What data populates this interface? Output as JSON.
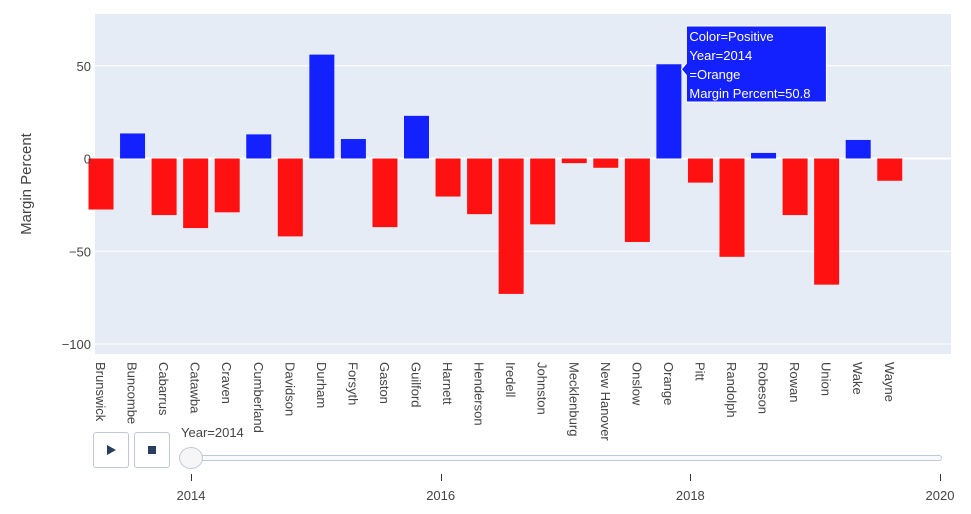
{
  "chart_data": {
    "type": "bar",
    "ylabel": "Margin Percent",
    "ylim": [
      -105,
      78
    ],
    "yticks": [
      50,
      0,
      -50,
      -100
    ],
    "ytick_labels": [
      "50",
      "0",
      "−50",
      "−100"
    ],
    "colors": {
      "Positive": "#1321ff",
      "Negative": "#ff1111"
    },
    "categories": [
      "Brunswick",
      "Buncombe",
      "Cabarrus",
      "Catawba",
      "Craven",
      "Cumberland",
      "Davidson",
      "Durham",
      "Forsyth",
      "Gaston",
      "Guilford",
      "Harnett",
      "Henderson",
      "Iredell",
      "Johnston",
      "Mecklenburg",
      "New Hanover",
      "Onslow",
      "Orange",
      "Pitt",
      "Randolph",
      "Robeson",
      "Rowan",
      "Union",
      "Wake",
      "Wayne"
    ],
    "values": [
      -27.5,
      13.5,
      -30.5,
      -37.5,
      -29,
      13,
      -42,
      56,
      10.5,
      -37,
      23,
      -20.5,
      -30,
      -73,
      -35.5,
      -2.5,
      -5,
      -45,
      50.8,
      -13,
      -53,
      3,
      -30.5,
      -68,
      10,
      -12
    ],
    "hover": {
      "category": "Orange",
      "lines": [
        "Color=Positive",
        "Year=2014",
        "=Orange",
        "Margin Percent=50.8"
      ]
    }
  },
  "animation": {
    "play_icon": "play-icon",
    "stop_icon": "stop-icon",
    "current_label": "Year=2014",
    "current_value": 2014,
    "range": [
      2014,
      2020
    ],
    "ticks": [
      {
        "value": 2014,
        "label": "2014"
      },
      {
        "value": 2016,
        "label": "2016"
      },
      {
        "value": 2018,
        "label": "2018"
      },
      {
        "value": 2020,
        "label": "2020"
      }
    ]
  }
}
